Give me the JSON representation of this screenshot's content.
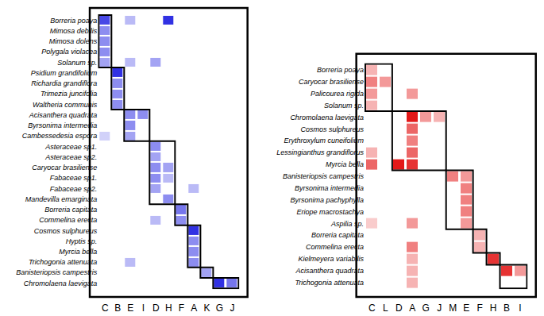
{
  "chart_data": [
    {
      "type": "heatmap",
      "color": "#1a1ae0",
      "zlim": [
        0,
        1
      ],
      "x": [
        "C",
        "B",
        "E",
        "I",
        "D",
        "H",
        "F",
        "A",
        "K",
        "G",
        "J"
      ],
      "y": [
        "Borreria poaya",
        "Mimosa debilis",
        "Mimosa dolens",
        "Polygala violacea",
        "Solanum sp.",
        "Psidium grandifolium",
        "Richardia grandiflora",
        "Trimezia juncifolia",
        "Waltheria communis",
        "Acisanthera quadrata",
        "Byrsonima intermedia",
        "Cambessedesia espora",
        "Asteraceae sp1.",
        "Asteraceae sp2.",
        "Caryocar brasiliense",
        "Fabaceae sp1.",
        "Fabaceae sp2.",
        "Mandevilla emarginata",
        "Borreria capitata",
        "Commelina erecta",
        "Cosmos sulphureus",
        "Hyptis sp.",
        "Myrcia bella",
        "Trichogonia attenuata",
        "Banisteriopsis campestris",
        "Chromolaena laevigata"
      ],
      "z": [
        [
          0.8,
          null,
          0.3,
          null,
          null,
          0.9,
          null,
          null,
          null,
          null,
          null
        ],
        [
          0.5,
          null,
          null,
          null,
          null,
          null,
          null,
          null,
          null,
          null,
          null
        ],
        [
          0.5,
          null,
          null,
          null,
          null,
          null,
          null,
          null,
          null,
          null,
          null
        ],
        [
          0.5,
          null,
          null,
          null,
          null,
          null,
          null,
          null,
          null,
          null,
          null
        ],
        [
          0.4,
          null,
          0.3,
          null,
          0.4,
          null,
          null,
          null,
          null,
          null,
          null
        ],
        [
          null,
          0.9,
          null,
          null,
          null,
          null,
          null,
          null,
          null,
          null,
          null
        ],
        [
          null,
          0.5,
          null,
          null,
          null,
          null,
          null,
          null,
          null,
          null,
          null
        ],
        [
          null,
          0.5,
          null,
          null,
          null,
          null,
          null,
          null,
          null,
          null,
          null
        ],
        [
          null,
          0.5,
          null,
          null,
          null,
          null,
          null,
          null,
          null,
          null,
          null
        ],
        [
          null,
          null,
          0.5,
          0.5,
          null,
          null,
          null,
          null,
          null,
          null,
          null
        ],
        [
          null,
          null,
          0.5,
          null,
          null,
          null,
          null,
          null,
          null,
          null,
          null
        ],
        [
          0.2,
          null,
          0.4,
          null,
          null,
          null,
          null,
          null,
          null,
          null,
          null
        ],
        [
          null,
          null,
          null,
          null,
          0.5,
          null,
          null,
          null,
          null,
          null,
          null
        ],
        [
          null,
          null,
          null,
          null,
          0.4,
          null,
          null,
          null,
          null,
          null,
          null
        ],
        [
          null,
          null,
          null,
          null,
          0.5,
          0.4,
          null,
          null,
          null,
          null,
          null
        ],
        [
          null,
          null,
          null,
          null,
          0.5,
          0.3,
          null,
          null,
          null,
          null,
          null
        ],
        [
          null,
          null,
          null,
          null,
          0.4,
          null,
          null,
          0.3,
          null,
          null,
          null
        ],
        [
          null,
          null,
          null,
          null,
          null,
          0.5,
          null,
          null,
          null,
          null,
          null
        ],
        [
          null,
          null,
          null,
          null,
          null,
          null,
          0.6,
          null,
          null,
          null,
          null
        ],
        [
          null,
          null,
          null,
          null,
          0.3,
          null,
          0.5,
          null,
          null,
          null,
          null
        ],
        [
          null,
          null,
          null,
          null,
          null,
          null,
          null,
          0.9,
          null,
          null,
          null
        ],
        [
          null,
          null,
          null,
          null,
          null,
          null,
          null,
          0.5,
          null,
          null,
          null
        ],
        [
          null,
          null,
          null,
          null,
          null,
          null,
          null,
          0.5,
          null,
          null,
          null
        ],
        [
          null,
          null,
          0.3,
          null,
          null,
          null,
          null,
          0.5,
          null,
          null,
          null
        ],
        [
          null,
          null,
          null,
          null,
          null,
          null,
          null,
          null,
          0.4,
          null,
          null
        ],
        [
          null,
          null,
          null,
          null,
          null,
          null,
          null,
          null,
          null,
          0.9,
          0.6
        ]
      ],
      "modules": [
        {
          "x": [
            "C",
            "C"
          ],
          "y": [
            "Borreria poaya",
            "Solanum sp."
          ]
        },
        {
          "x": [
            "B",
            "B"
          ],
          "y": [
            "Psidium grandifolium",
            "Waltheria communis"
          ]
        },
        {
          "x": [
            "E",
            "I"
          ],
          "y": [
            "Acisanthera quadrata",
            "Cambessedesia espora"
          ]
        },
        {
          "x": [
            "D",
            "H"
          ],
          "y": [
            "Asteraceae sp1.",
            "Mandevilla emarginata"
          ]
        },
        {
          "x": [
            "F",
            "F"
          ],
          "y": [
            "Borreria capitata",
            "Commelina erecta"
          ]
        },
        {
          "x": [
            "A",
            "A"
          ],
          "y": [
            "Cosmos sulphureus",
            "Trichogonia attenuata"
          ]
        },
        {
          "x": [
            "K",
            "K"
          ],
          "y": [
            "Banisteriopsis campestris",
            "Banisteriopsis campestris"
          ]
        },
        {
          "x": [
            "G",
            "J"
          ],
          "y": [
            "Chromolaena laevigata",
            "Chromolaena laevigata"
          ]
        }
      ]
    },
    {
      "type": "heatmap",
      "color": "#e00000",
      "zlim": [
        0,
        1
      ],
      "x": [
        "C",
        "L",
        "D",
        "A",
        "G",
        "J",
        "M",
        "E",
        "F",
        "H",
        "B",
        "I"
      ],
      "y": [
        "Borreria poaya",
        "Caryocar brasiliense",
        "Palicourea rigida",
        "Solanum sp.",
        "Chromolaena laevigata",
        "Cosmos sulphureus",
        "Erythroxylum cuneifolium",
        "Lessingianthus grandiflorus",
        "Myrcia bella",
        "Banisteriopsis campestris",
        "Byrsonima intermedia",
        "Byrsonima pachyphylla",
        "Eriope macrostachya",
        "Aspilia sp.",
        "Borreria capitata",
        "Commelina erecta",
        "Kielmeyera variabilis",
        "Acisanthera quadrata",
        "Trichogonia attenuata"
      ],
      "z": [
        [
          0.3,
          null,
          null,
          null,
          null,
          null,
          null,
          null,
          null,
          null,
          null,
          null
        ],
        [
          0.5,
          0.4,
          null,
          null,
          null,
          null,
          null,
          null,
          null,
          null,
          null,
          null
        ],
        [
          0.4,
          null,
          null,
          0.4,
          null,
          null,
          null,
          null,
          null,
          null,
          null,
          null
        ],
        [
          0.3,
          null,
          null,
          null,
          null,
          null,
          null,
          null,
          null,
          null,
          null,
          null
        ],
        [
          null,
          null,
          null,
          0.9,
          0.4,
          0.3,
          null,
          null,
          null,
          null,
          null,
          null
        ],
        [
          null,
          null,
          null,
          0.6,
          null,
          null,
          null,
          null,
          null,
          null,
          null,
          null
        ],
        [
          null,
          null,
          null,
          0.5,
          null,
          null,
          null,
          null,
          null,
          null,
          null,
          null
        ],
        [
          0.3,
          null,
          null,
          0.6,
          null,
          null,
          null,
          null,
          null,
          null,
          null,
          null
        ],
        [
          0.6,
          null,
          0.9,
          0.8,
          null,
          null,
          null,
          null,
          null,
          null,
          null,
          null
        ],
        [
          null,
          null,
          null,
          null,
          null,
          null,
          0.5,
          0.4,
          null,
          null,
          null,
          null
        ],
        [
          null,
          null,
          null,
          null,
          null,
          null,
          null,
          0.5,
          null,
          null,
          null,
          null
        ],
        [
          null,
          null,
          null,
          null,
          null,
          null,
          null,
          0.5,
          null,
          null,
          null,
          null
        ],
        [
          null,
          null,
          null,
          null,
          null,
          null,
          null,
          0.5,
          null,
          null,
          null,
          null
        ],
        [
          0.2,
          null,
          null,
          0.4,
          null,
          null,
          null,
          0.4,
          null,
          null,
          null,
          null
        ],
        [
          null,
          null,
          null,
          null,
          null,
          null,
          null,
          null,
          0.3,
          null,
          null,
          null
        ],
        [
          null,
          null,
          null,
          0.5,
          null,
          null,
          null,
          null,
          0.3,
          null,
          null,
          null
        ],
        [
          null,
          null,
          null,
          0.3,
          null,
          null,
          null,
          null,
          null,
          0.8,
          null,
          null
        ],
        [
          null,
          null,
          null,
          0.3,
          null,
          null,
          null,
          null,
          null,
          null,
          0.8,
          0.4
        ],
        [
          null,
          null,
          null,
          0.3,
          null,
          null,
          null,
          null,
          null,
          null,
          null,
          null
        ]
      ],
      "modules": [
        {
          "x": [
            "C",
            "L"
          ],
          "y": [
            "Borreria poaya",
            "Solanum sp."
          ]
        },
        {
          "x": [
            "D",
            "J"
          ],
          "y": [
            "Chromolaena laevigata",
            "Myrcia bella"
          ]
        },
        {
          "x": [
            "M",
            "E"
          ],
          "y": [
            "Banisteriopsis campestris",
            "Aspilia sp."
          ]
        },
        {
          "x": [
            "F",
            "F"
          ],
          "y": [
            "Borreria capitata",
            "Commelina erecta"
          ]
        },
        {
          "x": [
            "H",
            "H"
          ],
          "y": [
            "Kielmeyera variabilis",
            "Kielmeyera variabilis"
          ]
        },
        {
          "x": [
            "B",
            "I"
          ],
          "y": [
            "Acisanthera quadrata",
            "Trichogonia attenuata"
          ]
        }
      ]
    }
  ]
}
